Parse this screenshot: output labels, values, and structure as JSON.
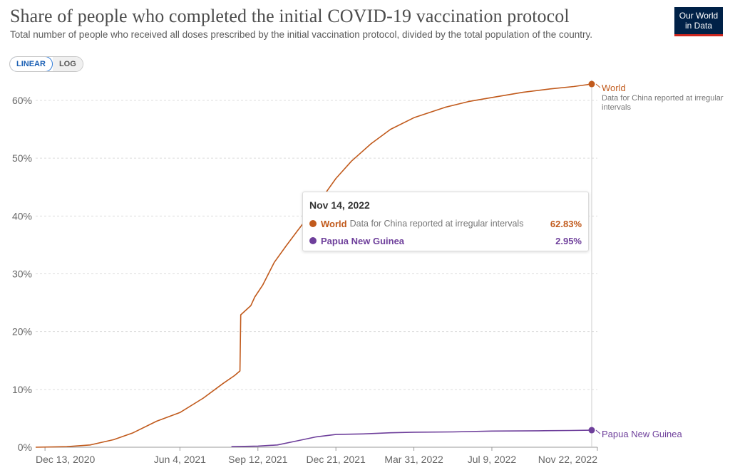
{
  "header": {
    "title": "Share of people who completed the initial COVID-19 vaccination protocol",
    "subtitle": "Total number of people who received all doses prescribed by the initial vaccination protocol, divided by the total population of the country.",
    "logo_line1": "Our World",
    "logo_line2": "in Data"
  },
  "controls": {
    "linear_label": "LINEAR",
    "log_label": "LOG",
    "selected": "LINEAR"
  },
  "colors": {
    "world": "#c15a1c",
    "png": "#6e3f9b",
    "grid": "#dddddd",
    "axis_text": "#666666"
  },
  "tooltip": {
    "date": "Nov 14, 2022",
    "rows": [
      {
        "name": "World",
        "note": "Data for China reported at irregular intervals",
        "value": "62.83%"
      },
      {
        "name": "Papua New Guinea",
        "note": "",
        "value": "2.95%"
      }
    ]
  },
  "chart_data": {
    "type": "line",
    "title": "Share of people who completed the initial COVID-19 vaccination protocol",
    "subtitle": "Total number of people who received all doses prescribed by the initial vaccination protocol, divided by the total population of the country.",
    "x_range": [
      "2020-12-01",
      "2022-11-14"
    ],
    "ylim": [
      0,
      60
    ],
    "y_ticks": [
      0,
      10,
      20,
      30,
      40,
      50,
      60
    ],
    "y_tick_labels": [
      "0%",
      "10%",
      "20%",
      "30%",
      "40%",
      "50%",
      "60%"
    ],
    "x_ticks": [
      "2020-12-13",
      "2021-06-04",
      "2021-09-12",
      "2021-12-21",
      "2022-03-31",
      "2022-07-09",
      "2022-11-22"
    ],
    "x_tick_labels": [
      "Dec 13, 2020",
      "Jun 4, 2021",
      "Sep 12, 2021",
      "Dec 21, 2021",
      "Mar 31, 2022",
      "Jul 9, 2022",
      "Nov 22, 2022"
    ],
    "grid": "horizontal",
    "legend": "end-of-line labels",
    "series": [
      {
        "name": "World",
        "annotation": "Data for China reported at irregular intervals",
        "color": "#c15a1c",
        "points": [
          [
            "2020-12-01",
            0.0
          ],
          [
            "2021-01-10",
            0.1
          ],
          [
            "2021-02-09",
            0.4
          ],
          [
            "2021-03-11",
            1.3
          ],
          [
            "2021-04-05",
            2.5
          ],
          [
            "2021-05-05",
            4.5
          ],
          [
            "2021-06-04",
            6.0
          ],
          [
            "2021-07-04",
            8.5
          ],
          [
            "2021-07-29",
            11.0
          ],
          [
            "2021-08-13",
            12.4
          ],
          [
            "2021-08-20",
            13.2
          ],
          [
            "2021-08-21",
            22.9
          ],
          [
            "2021-09-03",
            24.5
          ],
          [
            "2021-09-08",
            26.0
          ],
          [
            "2021-09-18",
            28.0
          ],
          [
            "2021-10-03",
            32.0
          ],
          [
            "2021-10-18",
            34.8
          ],
          [
            "2021-11-02",
            37.5
          ],
          [
            "2021-11-22",
            41.0
          ],
          [
            "2021-12-21",
            46.5
          ],
          [
            "2022-01-10",
            49.5
          ],
          [
            "2022-02-04",
            52.5
          ],
          [
            "2022-03-01",
            55.0
          ],
          [
            "2022-03-31",
            57.0
          ],
          [
            "2022-05-10",
            58.8
          ],
          [
            "2022-06-09",
            59.8
          ],
          [
            "2022-07-09",
            60.5
          ],
          [
            "2022-08-18",
            61.4
          ],
          [
            "2022-09-22",
            62.0
          ],
          [
            "2022-10-22",
            62.4
          ],
          [
            "2022-11-14",
            62.83
          ]
        ]
      },
      {
        "name": "Papua New Guinea",
        "color": "#6e3f9b",
        "points": [
          [
            "2021-08-09",
            0.1
          ],
          [
            "2021-09-12",
            0.2
          ],
          [
            "2021-10-07",
            0.4
          ],
          [
            "2021-11-01",
            1.1
          ],
          [
            "2021-11-26",
            1.8
          ],
          [
            "2021-12-21",
            2.2
          ],
          [
            "2022-01-25",
            2.3
          ],
          [
            "2022-03-01",
            2.5
          ],
          [
            "2022-03-31",
            2.6
          ],
          [
            "2022-05-20",
            2.65
          ],
          [
            "2022-07-09",
            2.8
          ],
          [
            "2022-09-07",
            2.85
          ],
          [
            "2022-10-17",
            2.9
          ],
          [
            "2022-11-14",
            2.95
          ]
        ]
      }
    ]
  }
}
